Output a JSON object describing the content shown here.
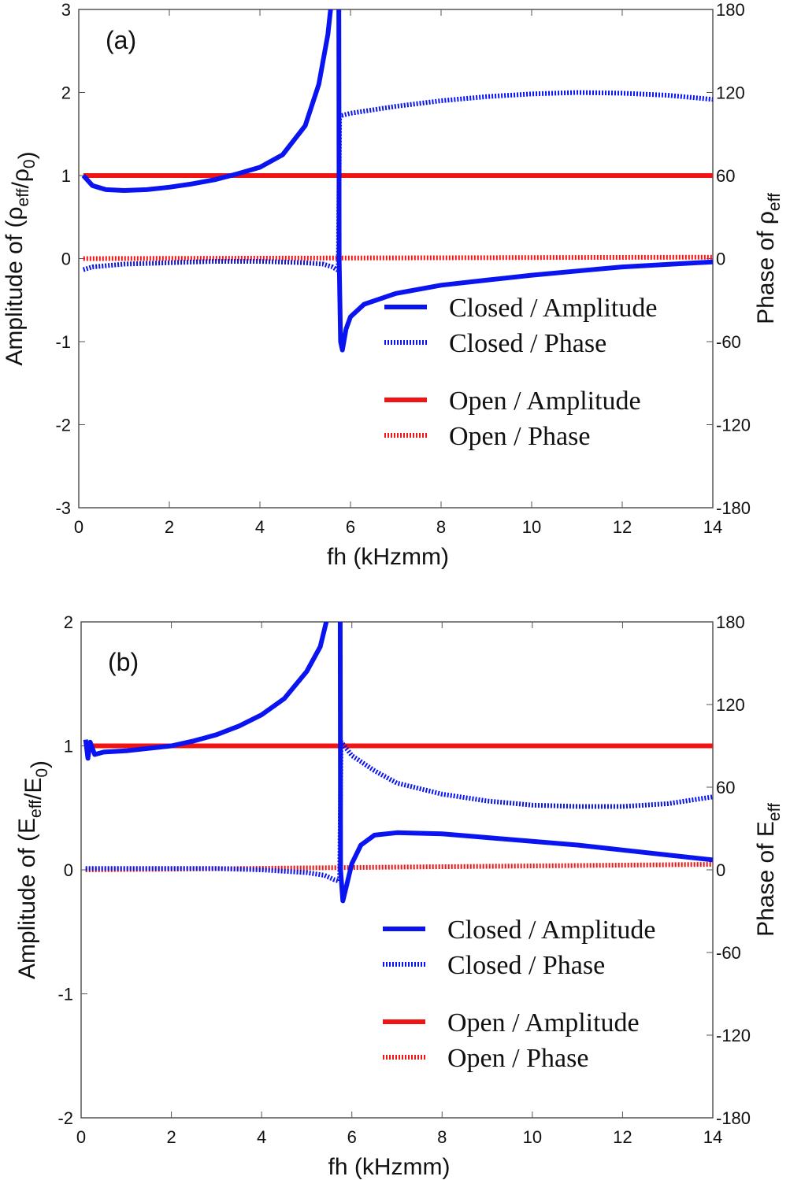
{
  "colors": {
    "closed": "#0a14f0",
    "open": "#f01414",
    "axis": "#555555"
  },
  "chart_data": [
    {
      "type": "line",
      "panel_label": "(a)",
      "xlabel": "fh (kHzmm)",
      "ylabel": "Amplitude of (ρ_eff/ρ_0)",
      "y2label": "Phase of ρ_eff",
      "xlim": [
        0,
        14
      ],
      "ylim": [
        -3,
        3
      ],
      "y2lim": [
        -180,
        180
      ],
      "xticks": [
        0,
        2,
        4,
        6,
        8,
        10,
        12,
        14
      ],
      "yticks": [
        -3,
        -2,
        -1,
        0,
        1,
        2,
        3
      ],
      "y2ticks": [
        -180,
        -120,
        -60,
        0,
        60,
        120,
        180
      ],
      "grid": false,
      "legend_placement": "lower-right",
      "series": [
        {
          "name": "Closed / Amplitude",
          "axis": "left",
          "style": "solid",
          "color": "closed",
          "segments": [
            {
              "x": [
                0.1,
                0.3,
                0.6,
                1,
                1.5,
                2,
                2.5,
                3,
                3.5,
                4,
                4.5,
                5,
                5.3,
                5.5,
                5.6,
                5.65
              ],
              "y": [
                1,
                0.88,
                0.83,
                0.82,
                0.83,
                0.86,
                0.9,
                0.95,
                1.02,
                1.1,
                1.25,
                1.6,
                2.1,
                2.7,
                3.2,
                3.5
              ]
            },
            {
              "x": [
                5.74,
                5.75,
                5.78,
                5.82,
                5.9,
                6,
                6.3,
                7,
                8,
                9,
                10,
                11,
                12,
                13,
                14
              ],
              "y": [
                3.5,
                0,
                -1.0,
                -1.1,
                -0.85,
                -0.7,
                -0.55,
                -0.42,
                -0.32,
                -0.26,
                -0.2,
                -0.15,
                -0.1,
                -0.07,
                -0.04
              ]
            }
          ]
        },
        {
          "name": "Closed / Phase",
          "axis": "right",
          "style": "dotted",
          "color": "closed",
          "segments": [
            {
              "x": [
                0.1,
                0.3,
                1,
                2,
                3,
                4,
                5,
                5.4,
                5.6,
                5.7,
                5.73,
                5.76,
                6,
                7,
                8,
                9,
                10,
                11,
                12,
                13,
                14
              ],
              "y": [
                -8,
                -6,
                -4,
                -3,
                -2,
                -2,
                -3,
                -4,
                -6,
                -8,
                -8,
                103,
                105,
                110,
                114,
                117,
                119,
                120,
                119.5,
                118,
                115
              ]
            }
          ]
        },
        {
          "name": "Open / Amplitude",
          "axis": "left",
          "style": "solid",
          "color": "open",
          "segments": [
            {
              "x": [
                0.1,
                14
              ],
              "y": [
                1,
                1
              ]
            }
          ]
        },
        {
          "name": "Open / Phase",
          "axis": "right",
          "style": "dotted",
          "color": "open",
          "segments": [
            {
              "x": [
                0.1,
                14
              ],
              "y": [
                0,
                1
              ]
            }
          ]
        }
      ]
    },
    {
      "type": "line",
      "panel_label": "(b)",
      "xlabel": "fh (kHzmm)",
      "ylabel": "Amplitude of (E_eff/E_0)",
      "y2label": "Phase of E_eff",
      "xlim": [
        0,
        14
      ],
      "ylim": [
        -2,
        2
      ],
      "y2lim": [
        -180,
        180
      ],
      "xticks": [
        0,
        2,
        4,
        6,
        8,
        10,
        12,
        14
      ],
      "yticks": [
        -2,
        -1,
        0,
        1,
        2
      ],
      "y2ticks": [
        -180,
        -120,
        -60,
        0,
        60,
        120,
        180
      ],
      "grid": false,
      "legend_placement": "lower-right",
      "series": [
        {
          "name": "Closed / Amplitude",
          "axis": "left",
          "style": "solid",
          "color": "closed",
          "segments": [
            {
              "x": [
                0.1,
                0.15,
                0.2,
                0.3,
                0.5,
                1,
                1.5,
                2,
                2.5,
                3,
                3.5,
                4,
                4.5,
                5,
                5.3,
                5.5,
                5.65
              ],
              "y": [
                1.05,
                0.9,
                1.03,
                0.93,
                0.95,
                0.96,
                0.98,
                1.0,
                1.04,
                1.09,
                1.16,
                1.25,
                1.38,
                1.6,
                1.8,
                2.1,
                2.5
              ]
            },
            {
              "x": [
                5.74,
                5.75,
                5.8,
                5.9,
                6,
                6.2,
                6.5,
                7,
                8,
                9,
                10,
                11,
                12,
                13,
                14
              ],
              "y": [
                2.5,
                0,
                -0.25,
                -0.1,
                0.05,
                0.2,
                0.28,
                0.3,
                0.29,
                0.26,
                0.23,
                0.2,
                0.16,
                0.12,
                0.08
              ]
            }
          ]
        },
        {
          "name": "Closed / Phase",
          "axis": "right",
          "style": "dotted",
          "color": "closed",
          "segments": [
            {
              "x": [
                0.1,
                1,
                2,
                3,
                4,
                5,
                5.4,
                5.6,
                5.7,
                5.73,
                5.76,
                6,
                6.5,
                7,
                8,
                9,
                10,
                11,
                12,
                13,
                14
              ],
              "y": [
                1,
                1,
                1,
                1,
                0,
                -2,
                -4,
                -7,
                -8,
                -8,
                93,
                83,
                72,
                63,
                55,
                50,
                47,
                46,
                46,
                48,
                53
              ]
            }
          ]
        },
        {
          "name": "Open / Amplitude",
          "axis": "left",
          "style": "solid",
          "color": "open",
          "segments": [
            {
              "x": [
                0.1,
                14
              ],
              "y": [
                1,
                1
              ]
            }
          ]
        },
        {
          "name": "Open / Phase",
          "axis": "right",
          "style": "dotted",
          "color": "open",
          "segments": [
            {
              "x": [
                0.1,
                14
              ],
              "y": [
                0,
                4
              ]
            }
          ]
        }
      ]
    }
  ]
}
